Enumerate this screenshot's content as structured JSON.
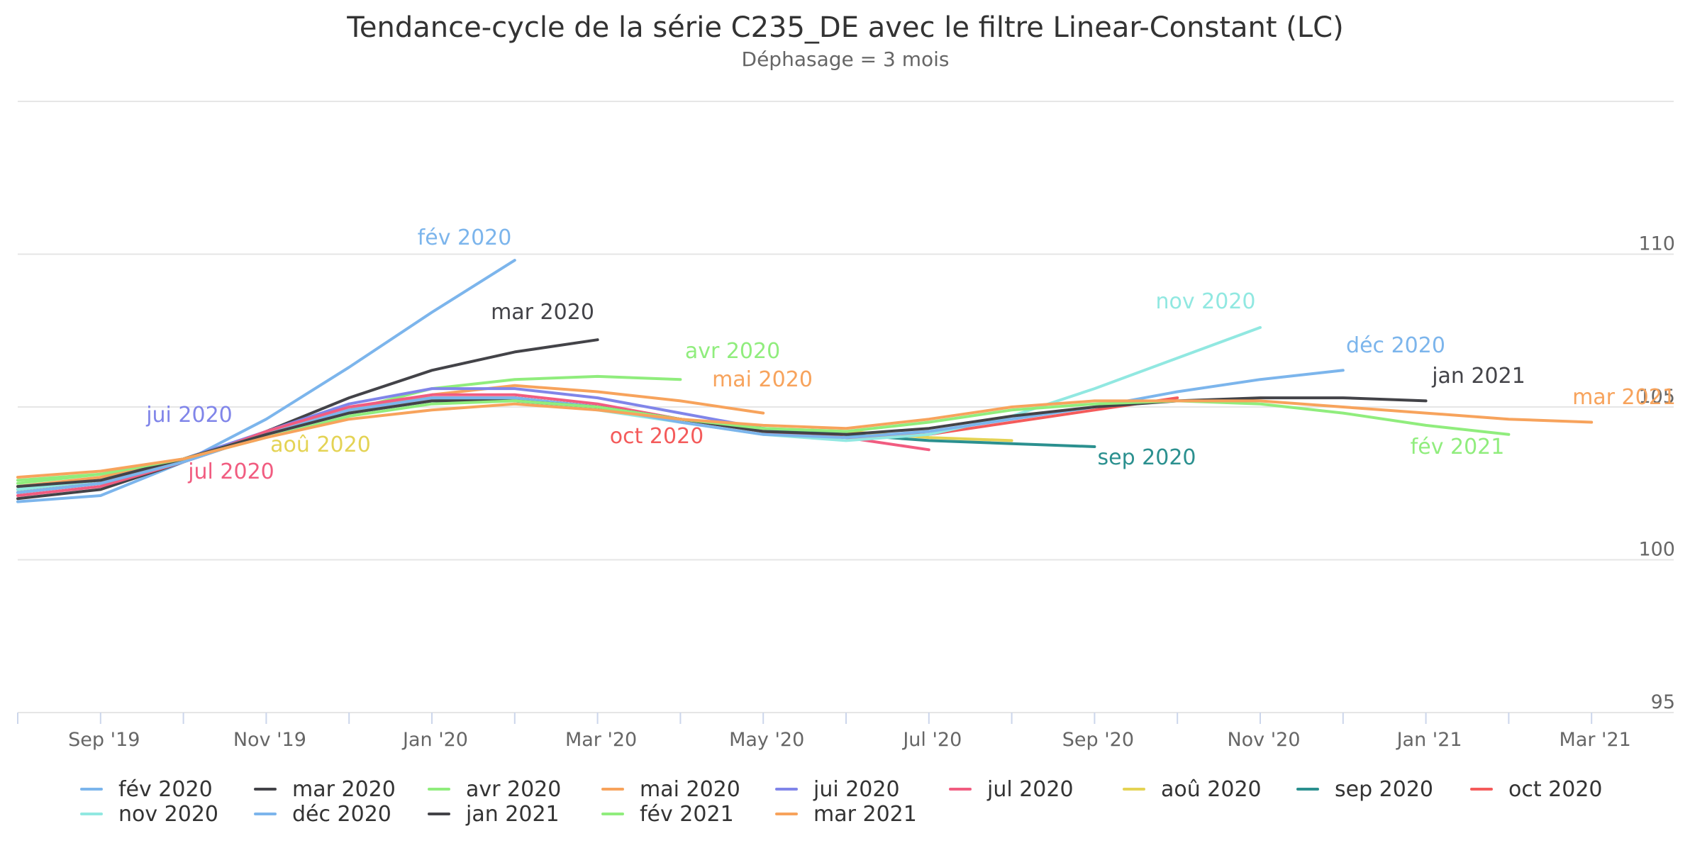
{
  "chart_data": {
    "type": "line",
    "title": "Tendance-cycle de la série C235_DE avec le filtre Linear-Constant (LC)",
    "subtitle": "Déphasage = 3 mois",
    "xlabel": "",
    "ylabel": "",
    "xlim": [
      "2019-08",
      "2021-03"
    ],
    "ylim": [
      95,
      115
    ],
    "x_ticks": [
      "Sep '19",
      "Nov '19",
      "Jan '20",
      "Mar '20",
      "May '20",
      "Jul '20",
      "Sep '20",
      "Nov '20",
      "Jan '21",
      "Mar '21"
    ],
    "y_ticks": [
      "95",
      "100",
      "105",
      "110"
    ],
    "grid": true,
    "legend_position": "bottom",
    "series": [
      {
        "name": "fév 2020",
        "color": "#7cb5ec",
        "label": "fév 2020",
        "x": [
          "2019-08",
          "2019-09",
          "2019-10",
          "2019-11",
          "2019-12",
          "2020-01",
          "2020-02"
        ],
        "values": [
          101.9,
          102.1,
          103.2,
          104.6,
          106.3,
          108.1,
          109.8
        ]
      },
      {
        "name": "mar 2020",
        "color": "#434348",
        "label": "mar 2020",
        "x": [
          "2019-08",
          "2019-09",
          "2019-10",
          "2019-11",
          "2019-12",
          "2020-01",
          "2020-02",
          "2020-03"
        ],
        "values": [
          102.0,
          102.3,
          103.2,
          104.2,
          105.3,
          106.2,
          106.8,
          107.2
        ]
      },
      {
        "name": "avr 2020",
        "color": "#90ed7d",
        "label": "avr 2020",
        "x": [
          "2019-08",
          "2019-09",
          "2019-10",
          "2019-11",
          "2019-12",
          "2020-01",
          "2020-02",
          "2020-03",
          "2020-04"
        ],
        "values": [
          102.6,
          102.8,
          103.3,
          104.1,
          104.9,
          105.6,
          105.9,
          106.0,
          105.9
        ]
      },
      {
        "name": "mai 2020",
        "color": "#f7a35c",
        "label": "mai 2020",
        "x": [
          "2019-08",
          "2019-09",
          "2019-10",
          "2019-11",
          "2019-12",
          "2020-01",
          "2020-02",
          "2020-03",
          "2020-04",
          "2020-05"
        ],
        "values": [
          102.4,
          102.7,
          103.3,
          104.1,
          104.9,
          105.4,
          105.7,
          105.5,
          105.2,
          104.8
        ]
      },
      {
        "name": "jui 2020",
        "color": "#8085e9",
        "label": "jui 2020",
        "x": [
          "2019-08",
          "2019-09",
          "2019-10",
          "2019-11",
          "2019-12",
          "2020-01",
          "2020-02",
          "2020-03",
          "2020-04",
          "2020-05",
          "2020-06"
        ],
        "values": [
          102.2,
          102.5,
          103.3,
          104.2,
          105.1,
          105.6,
          105.6,
          105.3,
          104.8,
          104.3,
          104.1
        ]
      },
      {
        "name": "jul 2020",
        "color": "#f15c80",
        "label": "jul 2020",
        "x": [
          "2019-08",
          "2019-09",
          "2019-10",
          "2019-11",
          "2019-12",
          "2020-01",
          "2020-02",
          "2020-03",
          "2020-04",
          "2020-05",
          "2020-06",
          "2020-07"
        ],
        "values": [
          102.1,
          102.4,
          103.2,
          104.2,
          105.0,
          105.4,
          105.4,
          105.1,
          104.6,
          104.2,
          104.0,
          103.6
        ]
      },
      {
        "name": "aoû 2020",
        "color": "#e4d354",
        "label": "aoû 2020",
        "x": [
          "2019-08",
          "2019-09",
          "2019-10",
          "2019-11",
          "2019-12",
          "2020-01",
          "2020-02",
          "2020-03",
          "2020-04",
          "2020-05",
          "2020-06",
          "2020-07",
          "2020-08"
        ],
        "values": [
          102.3,
          102.6,
          103.3,
          104.1,
          104.8,
          105.2,
          105.3,
          105.0,
          104.6,
          104.3,
          104.2,
          104.0,
          103.9
        ]
      },
      {
        "name": "sep 2020",
        "color": "#2b908f",
        "label": "sep 2020",
        "x": [
          "2019-08",
          "2019-09",
          "2019-10",
          "2019-11",
          "2019-12",
          "2020-01",
          "2020-02",
          "2020-03",
          "2020-04",
          "2020-05",
          "2020-06",
          "2020-07",
          "2020-08",
          "2020-09"
        ],
        "values": [
          102.3,
          102.6,
          103.3,
          104.1,
          104.8,
          105.2,
          105.3,
          105.0,
          104.6,
          104.3,
          104.1,
          103.9,
          103.8,
          103.7
        ]
      },
      {
        "name": "oct 2020",
        "color": "#f45b5b",
        "label": "oct 2020",
        "x": [
          "2019-08",
          "2019-09",
          "2019-10",
          "2019-11",
          "2019-12",
          "2020-01",
          "2020-02",
          "2020-03",
          "2020-04",
          "2020-05",
          "2020-06",
          "2020-07",
          "2020-08",
          "2020-09",
          "2020-10"
        ],
        "values": [
          102.2,
          102.5,
          103.2,
          104.1,
          104.9,
          105.3,
          105.3,
          105.0,
          104.6,
          104.2,
          104.0,
          104.1,
          104.5,
          104.9,
          105.3
        ]
      },
      {
        "name": "nov 2020",
        "color": "#91e8e1",
        "label": "nov 2020",
        "x": [
          "2019-08",
          "2019-09",
          "2019-10",
          "2019-11",
          "2019-12",
          "2020-01",
          "2020-02",
          "2020-03",
          "2020-04",
          "2020-05",
          "2020-06",
          "2020-07",
          "2020-08",
          "2020-09",
          "2020-10",
          "2020-11"
        ],
        "values": [
          102.3,
          102.6,
          103.3,
          104.1,
          104.8,
          105.2,
          105.2,
          104.9,
          104.5,
          104.1,
          103.9,
          104.1,
          104.7,
          105.6,
          106.6,
          107.6
        ]
      },
      {
        "name": "déc 2020",
        "color": "#7cb5ec",
        "label": "déc 2020",
        "x": [
          "2019-08",
          "2019-09",
          "2019-10",
          "2019-11",
          "2019-12",
          "2020-01",
          "2020-02",
          "2020-03",
          "2020-04",
          "2020-05",
          "2020-06",
          "2020-07",
          "2020-08",
          "2020-09",
          "2020-10",
          "2020-11",
          "2020-12"
        ],
        "values": [
          102.2,
          102.5,
          103.2,
          104.1,
          104.9,
          105.3,
          105.3,
          105.0,
          104.5,
          104.1,
          104.0,
          104.2,
          104.6,
          105.0,
          105.5,
          105.9,
          106.2
        ]
      },
      {
        "name": "jan 2021",
        "color": "#434348",
        "label": "jan 2021",
        "x": [
          "2019-08",
          "2019-09",
          "2019-10",
          "2019-11",
          "2019-12",
          "2020-01",
          "2020-02",
          "2020-03",
          "2020-04",
          "2020-05",
          "2020-06",
          "2020-07",
          "2020-08",
          "2020-09",
          "2020-10",
          "2020-11",
          "2020-12",
          "2021-01"
        ],
        "values": [
          102.4,
          102.6,
          103.3,
          104.1,
          104.8,
          105.2,
          105.2,
          105.0,
          104.6,
          104.2,
          104.1,
          104.3,
          104.7,
          105.0,
          105.2,
          105.3,
          105.3,
          105.2
        ]
      },
      {
        "name": "fév 2021",
        "color": "#90ed7d",
        "label": "fév 2021",
        "x": [
          "2019-08",
          "2019-09",
          "2019-10",
          "2019-11",
          "2019-12",
          "2020-01",
          "2020-02",
          "2020-03",
          "2020-04",
          "2020-05",
          "2020-06",
          "2020-07",
          "2020-08",
          "2020-09",
          "2020-10",
          "2020-11",
          "2020-12",
          "2021-01",
          "2021-02"
        ],
        "values": [
          102.5,
          102.8,
          103.3,
          104.0,
          104.7,
          105.1,
          105.2,
          105.0,
          104.6,
          104.3,
          104.2,
          104.5,
          104.9,
          105.1,
          105.2,
          105.1,
          104.8,
          104.4,
          104.1
        ]
      },
      {
        "name": "mar 2021",
        "color": "#f7a35c",
        "label": "mar 2021",
        "x": [
          "2019-08",
          "2019-09",
          "2019-10",
          "2019-11",
          "2019-12",
          "2020-01",
          "2020-02",
          "2020-03",
          "2020-04",
          "2020-05",
          "2020-06",
          "2020-07",
          "2020-08",
          "2020-09",
          "2020-10",
          "2020-11",
          "2020-12",
          "2021-01",
          "2021-02",
          "2021-03"
        ],
        "values": [
          102.7,
          102.9,
          103.3,
          104.0,
          104.6,
          104.9,
          105.1,
          104.9,
          104.6,
          104.4,
          104.3,
          104.6,
          105.0,
          105.2,
          105.2,
          105.2,
          105.0,
          104.8,
          104.6,
          104.5
        ]
      }
    ]
  }
}
